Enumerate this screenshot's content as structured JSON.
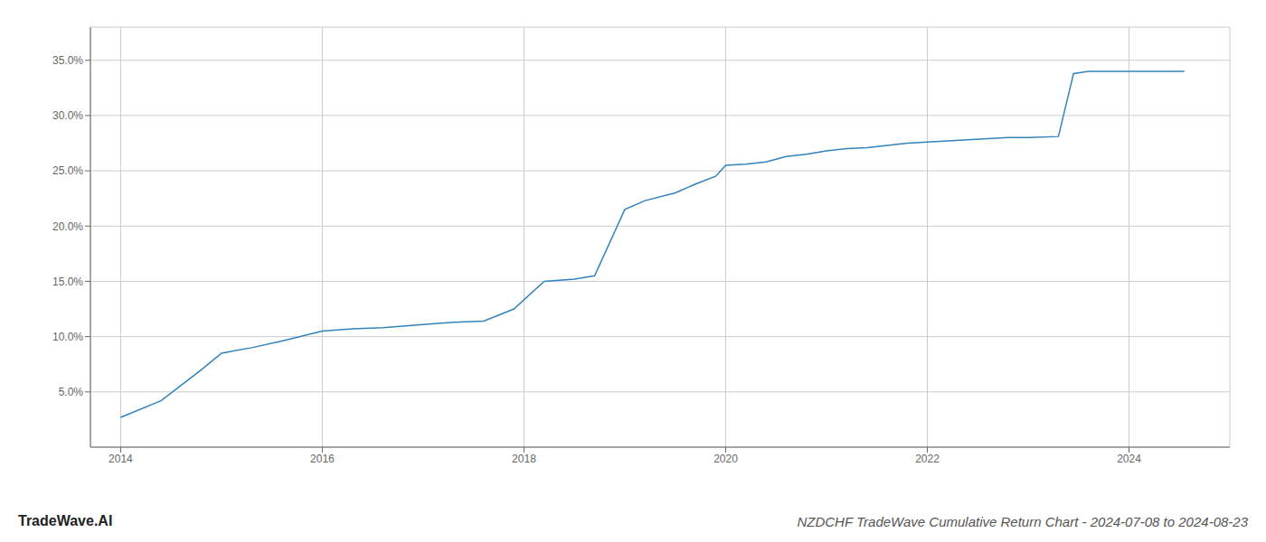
{
  "chart_data": {
    "type": "line",
    "title": "NZDCHF TradeWave Cumulative Return Chart - 2024-07-08 to 2024-08-23",
    "annotations": [
      "TradeWave.AI"
    ],
    "x": [
      2014.0,
      2014.4,
      2014.8,
      2015.0,
      2015.3,
      2015.6,
      2016.0,
      2016.3,
      2016.6,
      2017.0,
      2017.3,
      2017.6,
      2017.9,
      2018.2,
      2018.5,
      2018.7,
      2019.0,
      2019.2,
      2019.5,
      2019.7,
      2019.9,
      2020.0,
      2020.2,
      2020.4,
      2020.6,
      2020.8,
      2021.0,
      2021.2,
      2021.4,
      2021.6,
      2021.8,
      2022.0,
      2022.2,
      2022.4,
      2022.6,
      2022.8,
      2023.0,
      2023.3,
      2023.45,
      2023.6,
      2023.8,
      2024.0,
      2024.2,
      2024.55
    ],
    "values": [
      2.7,
      4.2,
      7.0,
      8.5,
      9.0,
      9.6,
      10.5,
      10.7,
      10.8,
      11.1,
      11.3,
      11.4,
      12.5,
      15.0,
      15.2,
      15.5,
      21.5,
      22.3,
      23.0,
      23.8,
      24.5,
      25.5,
      25.6,
      25.8,
      26.3,
      26.5,
      26.8,
      27.0,
      27.1,
      27.3,
      27.5,
      27.6,
      27.7,
      27.8,
      27.9,
      28.0,
      28.0,
      28.1,
      33.8,
      34.0,
      34.0,
      34.0,
      34.0,
      34.0
    ],
    "xlim": [
      2013.7,
      2025.0
    ],
    "ylim": [
      0,
      38
    ],
    "xticks": [
      2014,
      2016,
      2018,
      2020,
      2022,
      2024
    ],
    "yticks": [
      {
        "value": 5.0,
        "label": "5.0%"
      },
      {
        "value": 10.0,
        "label": "10.0%"
      },
      {
        "value": 15.0,
        "label": "15.0%"
      },
      {
        "value": 20.0,
        "label": "20.0%"
      },
      {
        "value": 25.0,
        "label": "25.0%"
      },
      {
        "value": 30.0,
        "label": "30.0%"
      },
      {
        "value": 35.0,
        "label": "35.0%"
      }
    ],
    "grid": true
  }
}
